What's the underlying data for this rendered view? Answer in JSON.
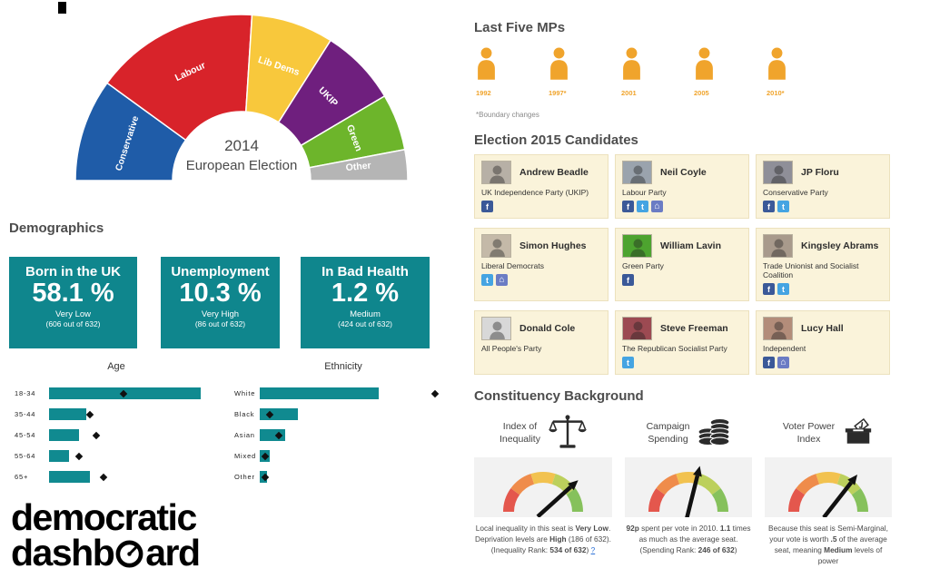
{
  "logo": {
    "line1": "democratic",
    "line2_pre": "dashb",
    "line2_post": "ard"
  },
  "sections": {
    "demographics": "Demographics",
    "last_five_mps": "Last Five MPs",
    "candidates": "Election 2015 Candidates",
    "constituency": "Constituency Background"
  },
  "chart_data": [
    {
      "type": "half-donut",
      "title_line1": "2014",
      "title_line2": "European Election",
      "segments": [
        {
          "label": "Conservative",
          "value": 20,
          "color": "#1f5ca8"
        },
        {
          "label": "Labour",
          "value": 32,
          "color": "#d8232a"
        },
        {
          "label": "Lib Dems",
          "value": 16,
          "color": "#f8c83c"
        },
        {
          "label": "UKIP",
          "value": 15,
          "color": "#6f1f7e"
        },
        {
          "label": "Green",
          "value": 11,
          "color": "#6db52b"
        },
        {
          "label": "Other",
          "value": 6,
          "color": "#b5b5b5"
        }
      ]
    },
    {
      "type": "bar",
      "title": "Age",
      "categories": [
        "18-34",
        "35-44",
        "45-54",
        "55-64",
        "65+"
      ],
      "values": [
        45,
        11,
        9,
        6,
        12
      ],
      "markers": [
        22,
        12,
        14,
        9,
        16
      ],
      "xmax": 50,
      "bar_color": "#108a90",
      "marker_color": "#111111"
    },
    {
      "type": "bar",
      "title": "Ethnicity",
      "categories": [
        "White",
        "Black",
        "Asian",
        "Mixed",
        "Other"
      ],
      "values": [
        62,
        20,
        13,
        5,
        4
      ],
      "markers": [
        91,
        5,
        10,
        3,
        3
      ],
      "xmax": 100,
      "bar_color": "#108a90",
      "marker_color": "#111111"
    }
  ],
  "stats": [
    {
      "title": "Born in the UK",
      "value": "58.1 %",
      "level": "Very Low",
      "rank": "(606 out of 632)"
    },
    {
      "title": "Unemployment",
      "value": "10.3 %",
      "level": "Very High",
      "rank": "(86 out of 632)"
    },
    {
      "title": "In Bad Health",
      "value": "1.2 %",
      "level": "Medium",
      "rank": "(424 out of 632)"
    }
  ],
  "mps": {
    "icon_color": "#f0a42c",
    "years": [
      "1992",
      "1997*",
      "2001",
      "2005",
      "2010*"
    ],
    "note": "*Boundary changes"
  },
  "candidates": [
    {
      "name": "Andrew Beadle",
      "party": "UK Independence Party (UKIP)",
      "socials": [
        "facebook"
      ],
      "photo_color": "#b7b0a6"
    },
    {
      "name": "Neil Coyle",
      "party": "Labour Party",
      "socials": [
        "facebook",
        "twitter",
        "home"
      ],
      "photo_color": "#9aa3ad"
    },
    {
      "name": "JP Floru",
      "party": "Conservative Party",
      "socials": [
        "facebook",
        "twitter"
      ],
      "photo_color": "#8f8f98"
    },
    {
      "name": "Simon Hughes",
      "party": "Liberal Democrats",
      "socials": [
        "twitter",
        "home"
      ],
      "photo_color": "#c4b9a8"
    },
    {
      "name": "William Lavin",
      "party": "Green Party",
      "socials": [
        "facebook"
      ],
      "photo_color": "#4da32f"
    },
    {
      "name": "Kingsley Abrams",
      "party": "Trade Unionist and Socialist Coalition",
      "socials": [
        "facebook",
        "twitter"
      ],
      "photo_color": "#a89a8c"
    },
    {
      "name": "Donald Cole",
      "party": "All People's Party",
      "socials": [],
      "photo_color": "#d8d8d8"
    },
    {
      "name": "Steve Freeman",
      "party": "The Republican Socialist Party",
      "socials": [
        "twitter"
      ],
      "photo_color": "#9c4a52"
    },
    {
      "name": "Lucy Hall",
      "party": "Independent",
      "socials": [
        "facebook",
        "home"
      ],
      "photo_color": "#b38d7a"
    }
  ],
  "social_icons": {
    "facebook": {
      "bg": "#3b5998",
      "glyph": "f"
    },
    "twitter": {
      "bg": "#45a4e2",
      "glyph": "t"
    },
    "home": {
      "bg": "#6b7cc4",
      "glyph": "⌂"
    }
  },
  "gauges": [
    {
      "title_line1": "Index of",
      "title_line2": "Inequality",
      "icon": "scales",
      "needle_deg": 42,
      "caption": [
        {
          "t": "Local inequality in this seat is "
        },
        {
          "t": "Very Low",
          "b": true
        },
        {
          "t": ". Deprivation levels are "
        },
        {
          "t": "High",
          "b": true
        },
        {
          "t": " (186 of 632). (Inequality Rank: "
        },
        {
          "t": "534 of 632",
          "b": true
        },
        {
          "t": ") "
        },
        {
          "t": "?",
          "link": true
        }
      ]
    },
    {
      "title_line1": "Campaign",
      "title_line2": "Spending",
      "icon": "coins",
      "needle_deg": 76,
      "caption": [
        {
          "t": "92p",
          "b": true
        },
        {
          "t": " spent per vote in 2010. "
        },
        {
          "t": "1.1",
          "b": true
        },
        {
          "t": " times as much as the average seat. (Spending Rank: "
        },
        {
          "t": "246 of 632",
          "b": true
        },
        {
          "t": ")"
        }
      ]
    },
    {
      "title_line1": "Voter Power",
      "title_line2": "Index",
      "icon": "ballot-box",
      "needle_deg": 52,
      "caption": [
        {
          "t": "Because this seat is Semi-Marginal, your vote is worth "
        },
        {
          "t": ".5",
          "b": true
        },
        {
          "t": " of the average seat, meaning "
        },
        {
          "t": "Medium",
          "b": true
        },
        {
          "t": " levels of power"
        }
      ]
    }
  ],
  "colors": {
    "teal": "#108a90",
    "header_text": "#4d4d4d",
    "card_bg": "#faf3da",
    "card_border": "#ece1bd",
    "mp_orange": "#f0a42c",
    "gauge_arc": [
      "#e4574d",
      "#ef8c4b",
      "#f2c24f",
      "#bcd05c",
      "#86c15c"
    ]
  }
}
